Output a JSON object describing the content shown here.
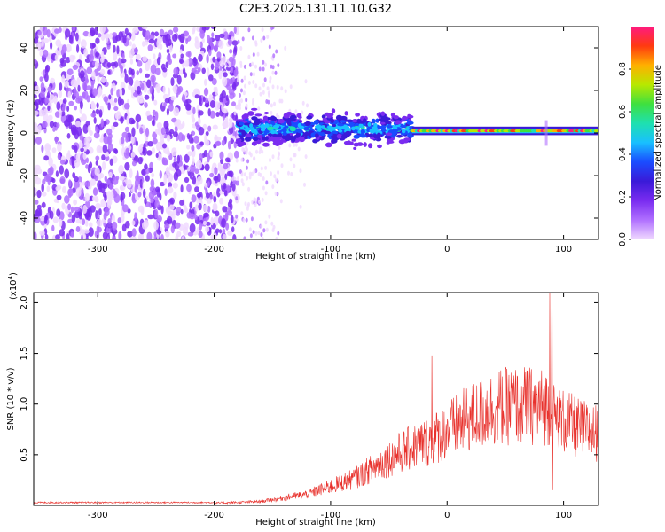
{
  "title": "C2E3.2025.131.11.10.G32",
  "colors": {
    "snr_line": "#e8312c",
    "colormap": [
      "#f0d9ff",
      "#b070ff",
      "#7a2cf0",
      "#3a1ad8",
      "#1a4cff",
      "#19c0ff",
      "#1ee0b0",
      "#3ee040",
      "#b8e800",
      "#ffb000",
      "#ff3a10",
      "#ff1a80"
    ]
  },
  "chart_data": [
    {
      "type": "heatmap",
      "xlabel": "Height of straight line (km)",
      "ylabel": "Frequency (Hz)",
      "xlim": [
        -355,
        130
      ],
      "ylim": [
        -50,
        50
      ],
      "xticks": [
        -300,
        -200,
        -100,
        0,
        100
      ],
      "yticks": [
        -40,
        -20,
        0,
        20,
        40
      ],
      "colorbar": {
        "label": "Normalized spectral amplitude",
        "range": [
          0,
          1
        ],
        "ticks": [
          "0.0",
          "0.2",
          "0.4",
          "0.6",
          "0.8"
        ]
      },
      "regions": [
        {
          "x_range": [
            -355,
            -180
          ],
          "freq_range": [
            -50,
            50
          ],
          "amplitude": 0.1
        },
        {
          "x_range": [
            -180,
            -30
          ],
          "center_freq": 2,
          "half_width_hz": 6,
          "amplitude": 0.45
        },
        {
          "x_range": [
            -30,
            130
          ],
          "center_freq": 1,
          "half_width_hz": 2,
          "amplitude": 0.9
        }
      ]
    },
    {
      "type": "line",
      "xlabel": "Height of straight line (km)",
      "ylabel": "SNR (10 * v/v)",
      "multiplier": "(x10",
      "multiplier_exp": "4",
      "unit_close": ")",
      "xlim": [
        -355,
        130
      ],
      "ylim": [
        0,
        2.1
      ],
      "xticks": [
        -300,
        -200,
        -100,
        0,
        100
      ],
      "yticks": [
        0.5,
        1.0,
        1.5,
        2.0
      ],
      "envelope": {
        "x": [
          -355,
          -200,
          -160,
          -120,
          -80,
          -40,
          -15,
          0,
          20,
          40,
          60,
          80,
          88,
          92,
          100,
          115,
          130
        ],
        "y": [
          0.03,
          0.03,
          0.05,
          0.15,
          0.35,
          0.7,
          0.85,
          0.98,
          1.15,
          1.28,
          1.32,
          1.3,
          1.3,
          1.15,
          1.1,
          1.0,
          0.95
        ]
      },
      "spikes": [
        {
          "x": -13,
          "y": 1.48
        },
        {
          "x": 88,
          "y": 2.1
        },
        {
          "x": 90,
          "y": 1.95
        },
        {
          "x": 90.5,
          "y": 0.15
        }
      ]
    }
  ]
}
